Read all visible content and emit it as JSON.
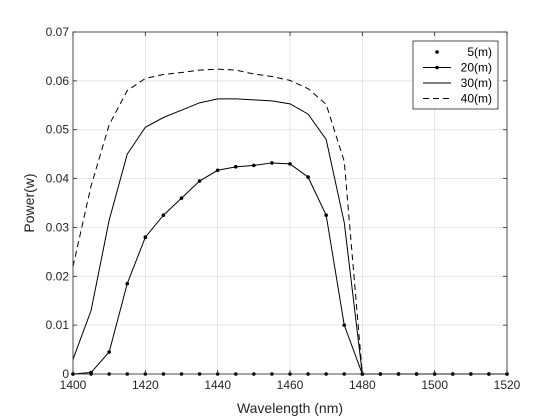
{
  "chart_data": {
    "type": "line",
    "title": "",
    "xlabel": "Wavelength (nm)",
    "ylabel": "Power(w)",
    "xlim": [
      1400,
      1520
    ],
    "ylim": [
      0,
      0.07
    ],
    "xticks": [
      1400,
      1420,
      1440,
      1460,
      1480,
      1500,
      1520
    ],
    "yticks": [
      0,
      0.01,
      0.02,
      0.03,
      0.04,
      0.05,
      0.06,
      0.07
    ],
    "xtick_labels": [
      "1400",
      "1420",
      "1440",
      "1460",
      "1480",
      "1500",
      "1520"
    ],
    "ytick_labels": [
      "0",
      "0.01",
      "0.02",
      "0.03",
      "0.04",
      "0.05",
      "0.06",
      "0.07"
    ],
    "grid": true,
    "legend_position": "top-right",
    "series": [
      {
        "name": "5(m)",
        "style": "dots",
        "x": [
          1400,
          1405,
          1410,
          1415,
          1420,
          1425,
          1430,
          1435,
          1440,
          1445,
          1450,
          1455,
          1460,
          1465,
          1470,
          1475,
          1480,
          1485,
          1490,
          1495,
          1500,
          1505,
          1510,
          1515,
          1520
        ],
        "y": [
          0,
          0,
          0,
          0,
          0,
          0,
          0,
          0,
          0,
          0,
          0,
          0,
          0,
          0,
          0,
          0,
          0,
          0,
          0,
          0,
          0,
          0,
          0,
          0,
          0
        ]
      },
      {
        "name": "20(m)",
        "style": "line-dots",
        "x": [
          1400,
          1405,
          1410,
          1415,
          1420,
          1425,
          1430,
          1435,
          1440,
          1445,
          1450,
          1455,
          1460,
          1465,
          1470,
          1475,
          1480,
          1485,
          1490,
          1495,
          1500,
          1505,
          1510,
          1515,
          1520
        ],
        "y": [
          0,
          0.0003,
          0.0045,
          0.0185,
          0.028,
          0.0325,
          0.036,
          0.0395,
          0.0417,
          0.0424,
          0.0427,
          0.0432,
          0.043,
          0.0403,
          0.0325,
          0.01,
          0,
          0,
          0,
          0,
          0,
          0,
          0,
          0,
          0
        ]
      },
      {
        "name": "30(m)",
        "style": "solid",
        "x": [
          1400,
          1405,
          1410,
          1415,
          1420,
          1425,
          1430,
          1435,
          1440,
          1445,
          1450,
          1455,
          1460,
          1465,
          1470,
          1475,
          1480,
          1485,
          1490,
          1495,
          1500,
          1505,
          1510,
          1515,
          1520
        ],
        "y": [
          0.003,
          0.013,
          0.0315,
          0.045,
          0.0505,
          0.0525,
          0.054,
          0.0555,
          0.0563,
          0.0563,
          0.0561,
          0.0559,
          0.0553,
          0.0532,
          0.048,
          0.031,
          0,
          0,
          0,
          0,
          0,
          0,
          0,
          0,
          0
        ]
      },
      {
        "name": "40(m)",
        "style": "dashed",
        "x": [
          1400,
          1405,
          1410,
          1415,
          1420,
          1425,
          1430,
          1435,
          1440,
          1445,
          1450,
          1455,
          1460,
          1465,
          1470,
          1475,
          1480,
          1485,
          1490,
          1495,
          1500,
          1505,
          1510,
          1515,
          1520
        ],
        "y": [
          0.022,
          0.0385,
          0.051,
          0.058,
          0.0605,
          0.0613,
          0.0617,
          0.0622,
          0.0624,
          0.0622,
          0.0614,
          0.0609,
          0.0601,
          0.0584,
          0.0552,
          0.0435,
          0,
          0,
          0,
          0,
          0,
          0,
          0,
          0,
          0
        ]
      }
    ]
  }
}
